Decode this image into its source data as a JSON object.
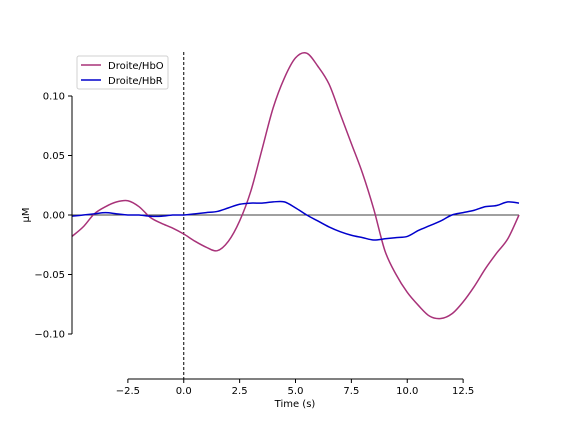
{
  "chart_data": {
    "type": "line",
    "xlabel": "Time (s)",
    "ylabel": "µM",
    "xlim": [
      -5.0,
      15.0
    ],
    "ylim": [
      -0.1,
      0.135
    ],
    "x_ticks": [
      -2.5,
      0.0,
      2.5,
      5.0,
      7.5,
      10.0,
      12.5
    ],
    "x_tick_labels": [
      "−2.5",
      "0.0",
      "2.5",
      "5.0",
      "7.5",
      "10.0",
      "12.5"
    ],
    "y_ticks": [
      0.1,
      0.05,
      0.0,
      -0.05,
      -0.1
    ],
    "y_tick_labels": [
      "0.10",
      "0.05",
      "0.00",
      "−0.05",
      "−0.10"
    ],
    "event_line_x": 0.0,
    "zero_line_y": 0.0,
    "legend_position": "top-left",
    "series": [
      {
        "name": "Droite/HbO",
        "color": "#a83279",
        "x": [
          -5.0,
          -4.5,
          -4.0,
          -3.5,
          -3.0,
          -2.5,
          -2.0,
          -1.5,
          -1.0,
          -0.5,
          0.0,
          0.5,
          1.0,
          1.5,
          2.0,
          2.5,
          3.0,
          3.5,
          4.0,
          4.5,
          5.0,
          5.5,
          6.0,
          6.5,
          7.0,
          7.5,
          8.0,
          8.5,
          9.0,
          9.5,
          10.0,
          10.5,
          11.0,
          11.5,
          12.0,
          12.5,
          13.0,
          13.5,
          14.0,
          14.5,
          15.0
        ],
        "y": [
          -0.018,
          -0.01,
          0.001,
          0.007,
          0.011,
          0.012,
          0.007,
          -0.002,
          -0.007,
          -0.011,
          -0.016,
          -0.022,
          -0.027,
          -0.03,
          -0.022,
          -0.005,
          0.02,
          0.055,
          0.09,
          0.115,
          0.132,
          0.136,
          0.125,
          0.11,
          0.085,
          0.06,
          0.035,
          0.005,
          -0.03,
          -0.05,
          -0.065,
          -0.076,
          -0.085,
          -0.087,
          -0.083,
          -0.073,
          -0.06,
          -0.045,
          -0.032,
          -0.02,
          0.0
        ]
      },
      {
        "name": "Droite/HbR",
        "color": "#0000cc",
        "x": [
          -5.0,
          -4.5,
          -4.0,
          -3.5,
          -3.0,
          -2.5,
          -2.0,
          -1.5,
          -1.0,
          -0.5,
          0.0,
          0.5,
          1.0,
          1.5,
          2.0,
          2.5,
          3.0,
          3.5,
          4.0,
          4.5,
          5.0,
          5.5,
          6.0,
          6.5,
          7.0,
          7.5,
          8.0,
          8.5,
          9.0,
          9.5,
          10.0,
          10.5,
          11.0,
          11.5,
          12.0,
          12.5,
          13.0,
          13.5,
          14.0,
          14.5,
          15.0
        ],
        "y": [
          -0.001,
          0.0,
          0.001,
          0.002,
          0.001,
          0.0,
          0.0,
          -0.001,
          -0.001,
          0.0,
          0.0,
          0.001,
          0.002,
          0.003,
          0.006,
          0.009,
          0.01,
          0.01,
          0.011,
          0.011,
          0.006,
          0.0,
          -0.005,
          -0.01,
          -0.014,
          -0.017,
          -0.019,
          -0.021,
          -0.02,
          -0.019,
          -0.018,
          -0.013,
          -0.009,
          -0.005,
          0.0,
          0.002,
          0.004,
          0.007,
          0.008,
          0.011,
          0.01
        ]
      }
    ]
  }
}
